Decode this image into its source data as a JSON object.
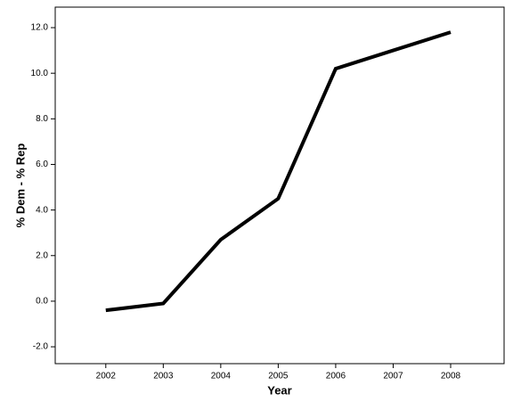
{
  "chart_data": {
    "type": "line",
    "x_label": "Year",
    "y_label": "% Dem - % Rep",
    "x": [
      2002,
      2003,
      2004,
      2005,
      2006,
      2007,
      2008
    ],
    "series": [
      {
        "name": "% Dem - % Rep",
        "color": "#000000",
        "values": [
          -0.4,
          -0.1,
          2.7,
          4.5,
          10.2,
          11.0,
          11.8
        ]
      }
    ],
    "xlim": [
      2001.12,
      2008.93
    ],
    "xticks": [
      2002,
      2003,
      2004,
      2005,
      2006,
      2007,
      2008
    ],
    "ylim": [
      -2.74,
      12.9
    ],
    "yticks": [
      {
        "value": -2,
        "label": "-2.0"
      },
      {
        "value": 0,
        "label": "0.0"
      },
      {
        "value": 2,
        "label": "2.0"
      },
      {
        "value": 4,
        "label": "4.0"
      },
      {
        "value": 6,
        "label": "6.0"
      },
      {
        "value": 8,
        "label": "8.0"
      },
      {
        "value": 10,
        "label": "10.0"
      },
      {
        "value": 12,
        "label": "12.0"
      }
    ],
    "grid": false
  }
}
